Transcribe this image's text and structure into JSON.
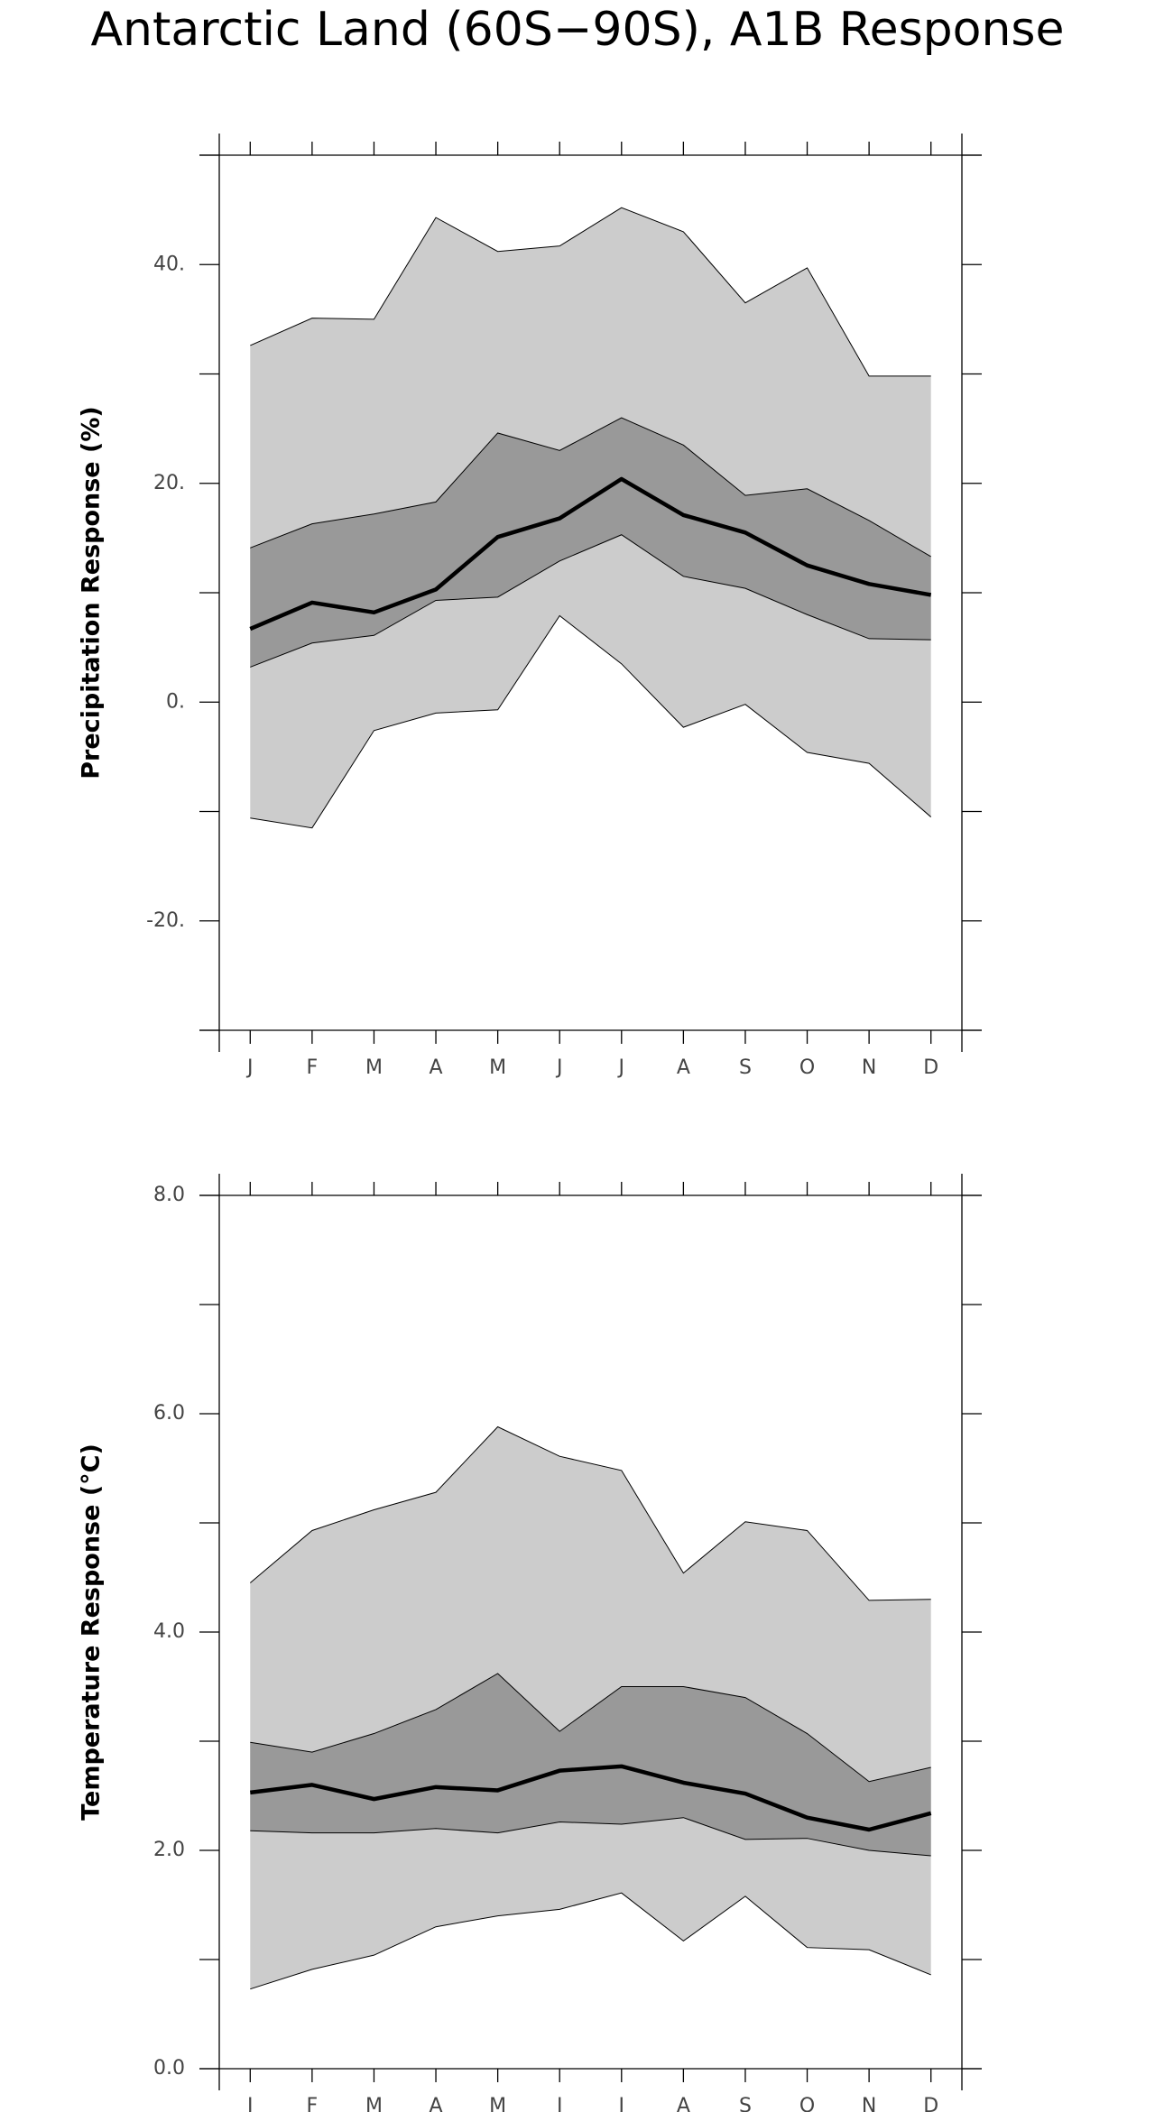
{
  "title": "Antarctic Land (60S−90S), A1B Response",
  "chart_data": [
    {
      "type": "band",
      "ylabel": "Precipitation Response (%)",
      "categories": [
        "J",
        "F",
        "M",
        "A",
        "M",
        "J",
        "J",
        "A",
        "S",
        "O",
        "N",
        "D"
      ],
      "ylim": [
        -30,
        50
      ],
      "yticks": [
        {
          "value": 40,
          "label": "40."
        },
        {
          "value": 20,
          "label": "20."
        },
        {
          "value": 0,
          "label": "0."
        },
        {
          "value": -20,
          "label": "-20."
        }
      ],
      "yminor": [
        50,
        30,
        10,
        -10,
        -30
      ],
      "series": [
        {
          "color": "#cccccc",
          "upper": [
            32.6,
            35.1,
            35.0,
            44.3,
            41.2,
            41.7,
            45.2,
            43.0,
            36.5,
            39.7,
            29.8,
            29.8
          ],
          "lower": [
            -10.6,
            -11.5,
            -2.6,
            -1.0,
            -0.7,
            7.9,
            3.5,
            -2.3,
            -0.2,
            -4.6,
            -5.6,
            -10.5
          ]
        },
        {
          "color": "#999999",
          "upper": [
            14.1,
            16.3,
            17.2,
            18.3,
            24.6,
            23.0,
            26.0,
            23.5,
            18.9,
            19.5,
            16.6,
            13.3
          ],
          "lower": [
            3.2,
            5.4,
            6.1,
            9.3,
            9.6,
            12.9,
            15.3,
            11.5,
            10.4,
            8.0,
            5.8,
            5.7
          ]
        },
        {
          "color": "#000000",
          "values": [
            6.7,
            9.1,
            8.2,
            10.3,
            15.1,
            16.8,
            20.4,
            17.1,
            15.5,
            12.5,
            10.8,
            9.8
          ]
        }
      ]
    },
    {
      "type": "band",
      "ylabel": "Temperature Response (°C)",
      "categories": [
        "J",
        "F",
        "M",
        "A",
        "M",
        "J",
        "J",
        "A",
        "S",
        "O",
        "N",
        "D"
      ],
      "ylim": [
        0,
        8
      ],
      "yticks": [
        {
          "value": 8,
          "label": "8.0"
        },
        {
          "value": 6,
          "label": "6.0"
        },
        {
          "value": 4,
          "label": "4.0"
        },
        {
          "value": 2,
          "label": "2.0"
        },
        {
          "value": 0,
          "label": "0.0"
        }
      ],
      "yminor": [
        7,
        5,
        3,
        1
      ],
      "series": [
        {
          "color": "#cccccc",
          "upper": [
            4.45,
            4.93,
            5.12,
            5.28,
            5.88,
            5.61,
            5.48,
            4.54,
            5.01,
            4.93,
            4.29,
            4.3
          ],
          "lower": [
            0.73,
            0.91,
            1.04,
            1.3,
            1.4,
            1.46,
            1.61,
            1.17,
            1.58,
            1.11,
            1.09,
            0.86
          ]
        },
        {
          "color": "#999999",
          "upper": [
            2.99,
            2.9,
            3.07,
            3.29,
            3.62,
            3.09,
            3.5,
            3.5,
            3.4,
            3.07,
            2.63,
            2.76
          ],
          "lower": [
            2.18,
            2.16,
            2.16,
            2.2,
            2.16,
            2.26,
            2.24,
            2.3,
            2.1,
            2.11,
            2.0,
            1.95
          ]
        },
        {
          "color": "#000000",
          "values": [
            2.53,
            2.6,
            2.47,
            2.58,
            2.55,
            2.73,
            2.77,
            2.62,
            2.52,
            2.3,
            2.19,
            2.34
          ]
        }
      ]
    }
  ]
}
